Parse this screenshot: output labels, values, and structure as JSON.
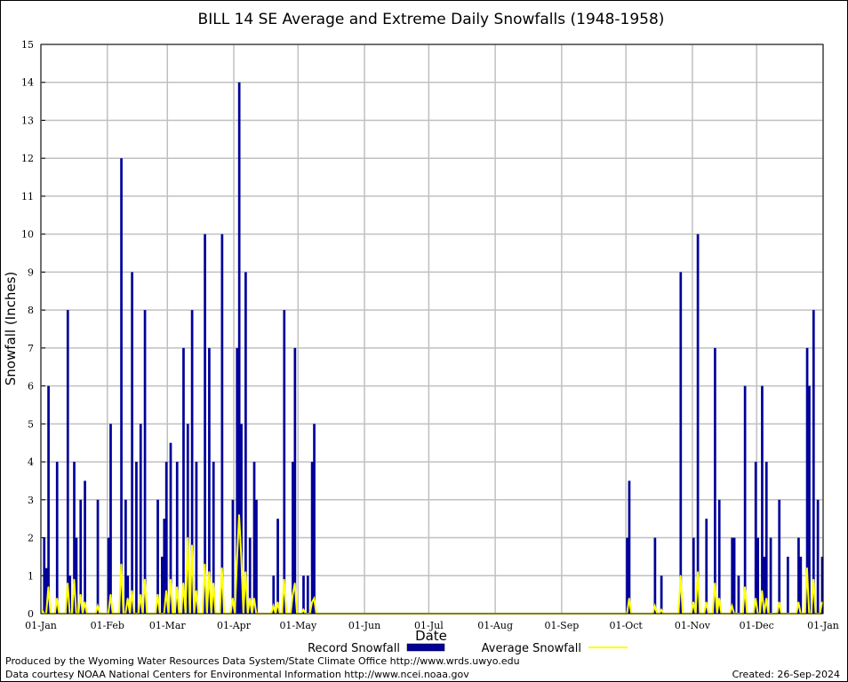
{
  "chart_data": {
    "type": "bar",
    "title": "BILL 14 SE Average and Extreme Daily Snowfalls (1948-1958)",
    "xlabel": "Date",
    "ylabel": "Snowfall (Inches)",
    "ylim": [
      0,
      15
    ],
    "yticks": [
      "0",
      "1",
      "2",
      "3",
      "4",
      "5",
      "6",
      "7",
      "8",
      "9",
      "10",
      "11",
      "12",
      "13",
      "14",
      "15"
    ],
    "xticks": [
      "01-Jan",
      "01-Feb",
      "01-Mar",
      "01-Apr",
      "01-May",
      "01-Jun",
      "01-Jul",
      "01-Aug",
      "01-Sep",
      "01-Oct",
      "01-Nov",
      "01-Dec",
      "01-Jan"
    ],
    "grid": true,
    "legend_position": "bottom",
    "colors": {
      "record": "#000099",
      "average": "#ffff00",
      "grid": "#c0c0c0"
    },
    "series": [
      {
        "name": "Record Snowfall",
        "type": "bar",
        "points": [
          [
            "02-Jan",
            2
          ],
          [
            "03-Jan",
            1.2
          ],
          [
            "04-Jan",
            6
          ],
          [
            "08-Jan",
            4
          ],
          [
            "13-Jan",
            8
          ],
          [
            "14-Jan",
            1
          ],
          [
            "16-Jan",
            4
          ],
          [
            "17-Jan",
            2
          ],
          [
            "19-Jan",
            3
          ],
          [
            "21-Jan",
            3.5
          ],
          [
            "27-Jan",
            3
          ],
          [
            "01-Feb",
            2
          ],
          [
            "02-Feb",
            5
          ],
          [
            "07-Feb",
            12
          ],
          [
            "09-Feb",
            3
          ],
          [
            "10-Feb",
            1
          ],
          [
            "12-Feb",
            9
          ],
          [
            "14-Feb",
            4
          ],
          [
            "16-Feb",
            5
          ],
          [
            "18-Feb",
            8
          ],
          [
            "24-Feb",
            3
          ],
          [
            "26-Feb",
            1.5
          ],
          [
            "27-Feb",
            2.5
          ],
          [
            "28-Feb",
            4
          ],
          [
            "02-Mar",
            4.5
          ],
          [
            "05-Mar",
            4
          ],
          [
            "08-Mar",
            7
          ],
          [
            "10-Mar",
            5
          ],
          [
            "12-Mar",
            8
          ],
          [
            "14-Mar",
            4
          ],
          [
            "18-Mar",
            10
          ],
          [
            "20-Mar",
            7
          ],
          [
            "22-Mar",
            4
          ],
          [
            "26-Mar",
            10
          ],
          [
            "31-Mar",
            3
          ],
          [
            "02-Apr",
            7
          ],
          [
            "03-Apr",
            14
          ],
          [
            "04-Apr",
            5
          ],
          [
            "06-Apr",
            9
          ],
          [
            "08-Apr",
            2
          ],
          [
            "10-Apr",
            4
          ],
          [
            "11-Apr",
            3
          ],
          [
            "19-Apr",
            1
          ],
          [
            "21-Apr",
            2.5
          ],
          [
            "24-Apr",
            8
          ],
          [
            "28-Apr",
            4
          ],
          [
            "29-Apr",
            7
          ],
          [
            "03-May",
            1
          ],
          [
            "05-May",
            1
          ],
          [
            "07-May",
            4
          ],
          [
            "08-May",
            5
          ],
          [
            "01-Oct",
            2
          ],
          [
            "02-Oct",
            3.5
          ],
          [
            "14-Oct",
            2
          ],
          [
            "17-Oct",
            1
          ],
          [
            "26-Oct",
            9
          ],
          [
            "01-Nov",
            2
          ],
          [
            "03-Nov",
            10
          ],
          [
            "07-Nov",
            2.5
          ],
          [
            "11-Nov",
            7
          ],
          [
            "13-Nov",
            3
          ],
          [
            "19-Nov",
            2
          ],
          [
            "20-Nov",
            2
          ],
          [
            "22-Nov",
            1
          ],
          [
            "25-Nov",
            6
          ],
          [
            "30-Nov",
            4
          ],
          [
            "01-Dec",
            2
          ],
          [
            "03-Dec",
            6
          ],
          [
            "04-Dec",
            1.5
          ],
          [
            "05-Dec",
            4
          ],
          [
            "07-Dec",
            2
          ],
          [
            "11-Dec",
            3
          ],
          [
            "15-Dec",
            1.5
          ],
          [
            "20-Dec",
            2
          ],
          [
            "21-Dec",
            1.5
          ],
          [
            "24-Dec",
            7
          ],
          [
            "25-Dec",
            6
          ],
          [
            "27-Dec",
            8
          ],
          [
            "29-Dec",
            3
          ],
          [
            "31-Dec",
            1.5
          ]
        ]
      },
      {
        "name": "Average Snowfall",
        "type": "line",
        "points": [
          [
            "01-Jan",
            0.1
          ],
          [
            "04-Jan",
            0.7
          ],
          [
            "08-Jan",
            0.4
          ],
          [
            "13-Jan",
            0.8
          ],
          [
            "16-Jan",
            0.9
          ],
          [
            "19-Jan",
            0.5
          ],
          [
            "21-Jan",
            0.3
          ],
          [
            "27-Jan",
            0.2
          ],
          [
            "02-Feb",
            0.5
          ],
          [
            "07-Feb",
            1.3
          ],
          [
            "10-Feb",
            0.4
          ],
          [
            "12-Feb",
            0.6
          ],
          [
            "16-Feb",
            0.5
          ],
          [
            "18-Feb",
            0.9
          ],
          [
            "24-Feb",
            0.5
          ],
          [
            "28-Feb",
            0.6
          ],
          [
            "02-Mar",
            0.9
          ],
          [
            "05-Mar",
            0.7
          ],
          [
            "08-Mar",
            0.8
          ],
          [
            "10-Mar",
            2.0
          ],
          [
            "12-Mar",
            1.8
          ],
          [
            "14-Mar",
            0.6
          ],
          [
            "18-Mar",
            1.3
          ],
          [
            "20-Mar",
            1.1
          ],
          [
            "22-Mar",
            0.8
          ],
          [
            "26-Mar",
            1.2
          ],
          [
            "31-Mar",
            0.4
          ],
          [
            "02-Apr",
            1.4
          ],
          [
            "03-Apr",
            2.6
          ],
          [
            "04-Apr",
            1.5
          ],
          [
            "06-Apr",
            1.1
          ],
          [
            "08-Apr",
            0.4
          ],
          [
            "10-Apr",
            0.4
          ],
          [
            "19-Apr",
            0.2
          ],
          [
            "21-Apr",
            0.3
          ],
          [
            "24-Apr",
            0.9
          ],
          [
            "28-Apr",
            0.5
          ],
          [
            "29-Apr",
            0.8
          ],
          [
            "03-May",
            0.1
          ],
          [
            "07-May",
            0.3
          ],
          [
            "08-May",
            0.4
          ],
          [
            "02-Oct",
            0.4
          ],
          [
            "14-Oct",
            0.2
          ],
          [
            "17-Oct",
            0.1
          ],
          [
            "26-Oct",
            1.0
          ],
          [
            "01-Nov",
            0.3
          ],
          [
            "03-Nov",
            1.1
          ],
          [
            "07-Nov",
            0.3
          ],
          [
            "11-Nov",
            0.8
          ],
          [
            "13-Nov",
            0.4
          ],
          [
            "19-Nov",
            0.2
          ],
          [
            "25-Nov",
            0.7
          ],
          [
            "30-Nov",
            0.4
          ],
          [
            "03-Dec",
            0.6
          ],
          [
            "05-Dec",
            0.4
          ],
          [
            "11-Dec",
            0.3
          ],
          [
            "20-Dec",
            0.3
          ],
          [
            "24-Dec",
            1.2
          ],
          [
            "27-Dec",
            0.9
          ],
          [
            "31-Dec",
            0.3
          ]
        ]
      }
    ]
  },
  "footer": {
    "produced": "Produced by the Wyoming Water Resources Data System/State Climate Office http://www.wrds.uwyo.edu",
    "courtesy": "Data courtesy NOAA National Centers for Environmental Information http://www.ncei.noaa.gov",
    "created": "Created: 26-Sep-2024"
  }
}
